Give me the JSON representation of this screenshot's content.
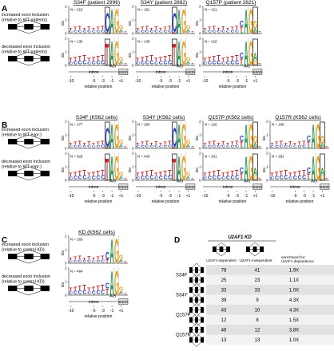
{
  "figure": {
    "panels": [
      {
        "id": "A",
        "rows": [
          "increased exon inclusion\n(relative to WT patients)",
          "decreased exon inclusion\n(relative to WT patients)"
        ],
        "logos": [
          {
            "title": "S34F (patient 2996)",
            "n_top": "N = 210",
            "n_bottom": "N = 130",
            "pattern": "C",
            "box": -3
          },
          {
            "title": "S34Y (patient 2882)",
            "n_top": "N = 161",
            "n_bottom": "N = 145",
            "pattern": "C",
            "box": -3
          },
          {
            "title": "Q157P (patient 2821)",
            "n_top": "N = 121",
            "n_bottom": "N = 215",
            "pattern": "Q",
            "box": 1
          }
        ]
      },
      {
        "id": "B",
        "rows": [
          "increased exon inclusion\n(relative to WT expr.)",
          "decreased exon inclusion\n(relative to WT expr.)"
        ],
        "logos": [
          {
            "title": "S34F (K562 cells)",
            "n_top": "N = 277",
            "n_bottom": "N = 829",
            "pattern": "C",
            "box": -3
          },
          {
            "title": "S34Y (K562 cells)",
            "n_top": "N = 260",
            "n_bottom": "N = 443",
            "pattern": "C",
            "box": -3
          },
          {
            "title": "Q157P (K562 cells)",
            "n_top": "N = 126",
            "n_bottom": "N = 201",
            "pattern": "Q",
            "box": 1
          },
          {
            "title": "Q157R (K562 cells)",
            "n_top": "N = 166",
            "n_bottom": "N = 291",
            "pattern": "Q",
            "box": 1
          }
        ]
      },
      {
        "id": "C",
        "rows": [
          "increased exon inclusion\n(relative to control KD)",
          "decreased exon inclusion\n(relative to control KD)"
        ],
        "logos": [
          {
            "title": "KD (K562 cells)",
            "n_top": "N = 263",
            "n_bottom": "N = 464",
            "pattern": "KD",
            "box": 0
          }
        ]
      }
    ],
    "axis": {
      "ylabel": "bits",
      "yticks": [
        "2",
        "1",
        "0"
      ],
      "xlabel": "relative position",
      "xticks": [
        "-10",
        "-5",
        "-3",
        "-1",
        "+1"
      ],
      "intron": "intron",
      "exon": "exon",
      "ag": "AG"
    },
    "panel_d": {
      "id": "D",
      "title": "U2AF1 KD",
      "col_dependent": "U2AF1-dependent",
      "col_independent": "U2AF1-independent",
      "col_enrichment": "enrichment for\nU2AF1 dependence",
      "rows": [
        {
          "group": "S34F",
          "dependent": "78",
          "independent": "41",
          "enrichment": "1.9X"
        },
        {
          "group": "",
          "dependent": "25",
          "independent": "23",
          "enrichment": "1.1X"
        },
        {
          "group": "S34Y",
          "dependent": "33",
          "independent": "33",
          "enrichment": "1.0X"
        },
        {
          "group": "",
          "dependent": "39",
          "independent": "9",
          "enrichment": "4.3X"
        },
        {
          "group": "Q157P",
          "dependent": "43",
          "independent": "10",
          "enrichment": "4.3X"
        },
        {
          "group": "",
          "dependent": "12",
          "independent": "8",
          "enrichment": "1.5X"
        },
        {
          "group": "Q157R",
          "dependent": "46",
          "independent": "12",
          "enrichment": "3.8X"
        },
        {
          "group": "",
          "dependent": "13",
          "independent": "13",
          "enrichment": "1.0X"
        }
      ]
    }
  }
}
